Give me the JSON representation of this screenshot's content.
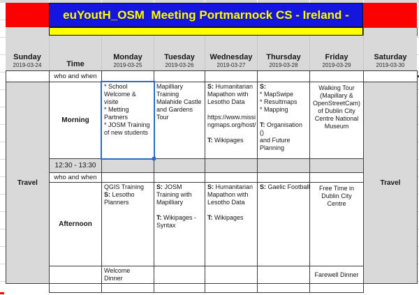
{
  "title": "euYoutH_OSM  Meeting Portmarnock CS - Ireland -",
  "columns": [
    {
      "label": "Sunday",
      "date": "2019-03-24"
    },
    {
      "label": "Time",
      "date": ""
    },
    {
      "label": "Monday",
      "date": "2019-03-25"
    },
    {
      "label": "Tuesday",
      "date": "2019-03-26"
    },
    {
      "label": "Wednesday",
      "date": "2019-03-27"
    },
    {
      "label": "Thursday",
      "date": "2019-03-28"
    },
    {
      "label": "Friday",
      "date": "2019-03-29"
    },
    {
      "label": "Saturday",
      "date": "2019-03-30"
    }
  ],
  "time_column": {
    "who_and_when_1": "who and when",
    "morning": "Morning",
    "lunch": "12:30 - 13:30",
    "who_and_when_2": "who and when",
    "afternoon": "Afternoon"
  },
  "travel": {
    "sunday": "Travel",
    "saturday": "Travel"
  },
  "morning": {
    "monday": "* School\nWelcome & visite\n* Metting\nPartners\n* JOSM Training\nof new students",
    "tuesday": "Mapilliary\nTraining\nMalahide Castle\nand Gardens\nTour",
    "wednesday": "S: Humanitarian\nMapathon with\nLesotho Data\n\nhttps://www.missi\nngmaps.org/host/\n\nT: Wikipages",
    "thursday": "S:\n* MapSwipe\n* Resultmaps\n* Mapping\n\nT: Organisation ()\nand Future\nPlanning",
    "friday": "Walking Tour\n(Mapillary &\nOpenStreetCam)\nof Dublin City\nCentre National\nMuseum"
  },
  "afternoon": {
    "monday": "QGIS Training\nS: Lesotho\nPlanners",
    "tuesday": "S: JOSM\nTraining with\nMapilliary\n\nT: Wikipages -\nSyntax",
    "wednesday": "S: Humanitarian\nMapathon with\nLesotho Data\n\nT: Wikipages",
    "thursday": "S: Gaelic Football",
    "friday": "Free Time in\nDublin City\nCentre"
  },
  "dinner": {
    "monday": "Welcome\nDinner",
    "friday": "Farewell Dinner"
  },
  "colors": {
    "banner_blue": "#1515e0",
    "banner_red": "#fb0202",
    "banner_yellow": "#ffff00",
    "header_gray": "#d9d9d9",
    "selection_blue": "#2a6acc"
  }
}
